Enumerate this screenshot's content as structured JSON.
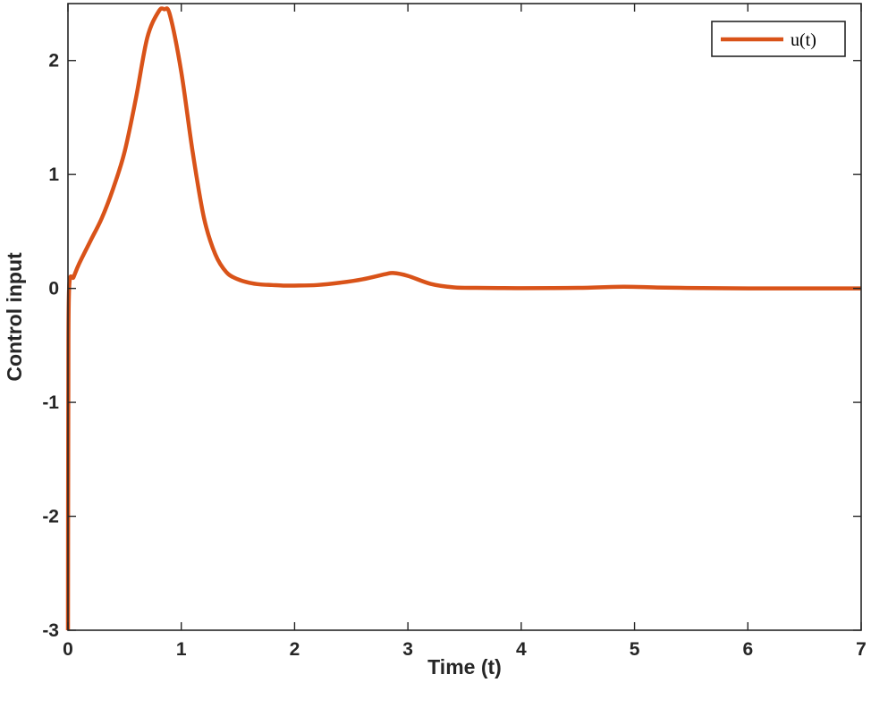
{
  "chart_data": {
    "type": "line",
    "title": "",
    "xlabel": "Time (t)",
    "ylabel": "Control input",
    "xlim": [
      0,
      7
    ],
    "ylim": [
      -3,
      2.5
    ],
    "xticks": [
      0,
      1,
      2,
      3,
      4,
      5,
      6,
      7
    ],
    "xtick_labels": [
      "0",
      "1",
      "2",
      "3",
      "4",
      "5",
      "6",
      "7"
    ],
    "yticks": [
      -3,
      -2,
      -1,
      0,
      1,
      2
    ],
    "ytick_labels": [
      "-3",
      "-2",
      "-1",
      "0",
      "1",
      "2"
    ],
    "grid": false,
    "legend_position": "top-right",
    "series": [
      {
        "name": "u(t)",
        "color": "#D95319",
        "x": [
          0,
          0.003,
          0.01,
          0.05,
          0.1,
          0.2,
          0.3,
          0.4,
          0.5,
          0.6,
          0.7,
          0.8,
          0.85,
          0.9,
          1.0,
          1.1,
          1.2,
          1.3,
          1.4,
          1.5,
          1.6,
          1.7,
          1.8,
          1.9,
          2.0,
          2.2,
          2.4,
          2.6,
          2.8,
          2.87,
          3.0,
          3.2,
          3.4,
          3.6,
          3.8,
          4.0,
          4.5,
          4.9,
          5.2,
          5.6,
          6.0,
          6.5,
          7.0
        ],
        "y": [
          -3.0,
          -1.0,
          0.0,
          0.1,
          0.22,
          0.42,
          0.62,
          0.88,
          1.2,
          1.67,
          2.2,
          2.43,
          2.45,
          2.4,
          1.9,
          1.2,
          0.62,
          0.3,
          0.14,
          0.08,
          0.05,
          0.035,
          0.03,
          0.025,
          0.025,
          0.03,
          0.05,
          0.08,
          0.125,
          0.135,
          0.11,
          0.04,
          0.01,
          0.005,
          0.003,
          0.002,
          0.005,
          0.015,
          0.008,
          0.003,
          0.0,
          0.0,
          0.0
        ]
      }
    ]
  }
}
